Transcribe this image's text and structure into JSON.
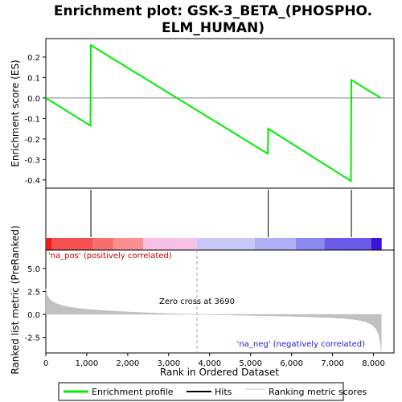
{
  "chart_data": {
    "type": "line",
    "title": "Enrichment plot: GSK-3_BETA_(PHOSPHO.\nELM_HUMAN)",
    "title_lines": [
      "Enrichment plot: GSK-3_BETA_(PHOSPHO.",
      "ELM_HUMAN)"
    ],
    "xlabel": "Rank in Ordered Dataset",
    "xlim": [
      0,
      8500
    ],
    "x_ticks": [
      0,
      1000,
      2000,
      3000,
      4000,
      5000,
      6000,
      7000,
      8000
    ],
    "x_tick_labels": [
      "0",
      "1,000",
      "2,000",
      "3,000",
      "4,000",
      "5,000",
      "6,000",
      "7,000",
      "8,000"
    ],
    "es_panel": {
      "ylabel": "Enrichment score (ES)",
      "ylim": [
        -0.44,
        0.29
      ],
      "y_ticks": [
        0.2,
        0.1,
        0.0,
        -0.1,
        -0.2,
        -0.3,
        -0.4
      ],
      "y_tick_labels": [
        "0.2",
        "0.1",
        "0.0",
        "-0.1",
        "-0.2",
        "-0.3",
        "-0.4"
      ],
      "series": [
        {
          "name": "Enrichment profile",
          "color": "#00ee00",
          "x": [
            0,
            1090,
            1100,
            5420,
            5430,
            7450,
            7460,
            8180
          ],
          "y": [
            0.0,
            -0.135,
            0.258,
            -0.272,
            -0.15,
            -0.405,
            0.088,
            0.0
          ]
        }
      ]
    },
    "hits": {
      "name": "Hits",
      "color": "#000000",
      "positions": [
        1100,
        5430,
        7460
      ]
    },
    "rank_bar": {
      "segments": [
        {
          "start": 0,
          "end": 150,
          "color": "#ee1c1c"
        },
        {
          "start": 150,
          "end": 1150,
          "color": "#f65050"
        },
        {
          "start": 1150,
          "end": 1650,
          "color": "#f77070"
        },
        {
          "start": 1650,
          "end": 2380,
          "color": "#f99090"
        },
        {
          "start": 2380,
          "end": 3690,
          "color": "#f8c2e8"
        },
        {
          "start": 3690,
          "end": 5100,
          "color": "#c8c8f8"
        },
        {
          "start": 5100,
          "end": 6100,
          "color": "#b0b0f4"
        },
        {
          "start": 6100,
          "end": 6800,
          "color": "#8a8af0"
        },
        {
          "start": 6800,
          "end": 7950,
          "color": "#6a5ae8"
        },
        {
          "start": 7950,
          "end": 8200,
          "color": "#3a14d8"
        }
      ]
    },
    "metric_panel": {
      "ylabel": "Ranked list metric (PreRanked)",
      "ylim": [
        -4.2,
        7.0
      ],
      "y_ticks": [
        5.0,
        2.5,
        0.0,
        -2.5
      ],
      "y_tick_labels": [
        "5.0",
        "2.5",
        "0.0",
        "-2.5"
      ],
      "series": {
        "name": "Ranking metric scores",
        "color": "#c0c0c0",
        "x": [
          0,
          30,
          80,
          150,
          250,
          400,
          600,
          800,
          1000,
          1300,
          1600,
          2000,
          2500,
          3000,
          3690,
          4200,
          5000,
          5500,
          6000,
          6500,
          7000,
          7300,
          7600,
          7800,
          7950,
          8050,
          8120,
          8160,
          8190
        ],
        "y": [
          2.8,
          2.1,
          1.75,
          1.45,
          1.2,
          0.95,
          0.78,
          0.65,
          0.55,
          0.45,
          0.36,
          0.27,
          0.17,
          0.08,
          0.0,
          -0.05,
          -0.12,
          -0.17,
          -0.22,
          -0.28,
          -0.36,
          -0.45,
          -0.6,
          -0.8,
          -1.1,
          -1.5,
          -2.1,
          -2.9,
          -4.0
        ]
      },
      "zero_cross": 3690,
      "zero_cross_label": "Zero cross at 3690",
      "pos_label": "'na_pos' (positively correlated)",
      "neg_label": "'na_neg' (negatively correlated)"
    },
    "legend": {
      "placement": "bottom",
      "entries": [
        {
          "label": "Enrichment profile",
          "color": "#00ee00"
        },
        {
          "label": "Hits",
          "color": "#000000"
        },
        {
          "label": "Ranking metric scores",
          "color": "#c0c0c0"
        }
      ]
    }
  }
}
